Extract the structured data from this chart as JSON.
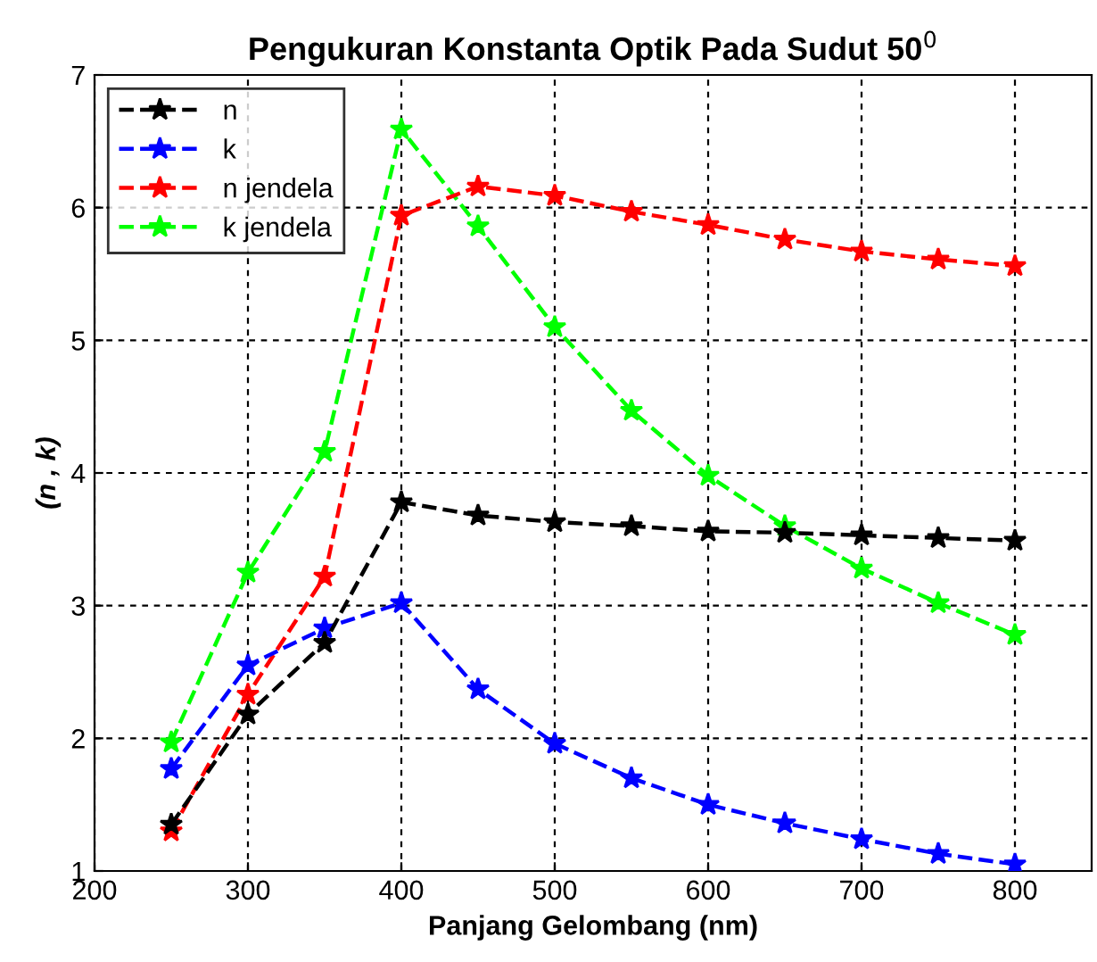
{
  "chart_data": {
    "type": "line",
    "title": "Pengukuran Konstanta Optik Pada Sudut 50$^{0}$",
    "xlabel": "Panjang Gelombang (nm)",
    "ylabel": "(n , k)",
    "x": [
      250,
      300,
      350,
      400,
      450,
      500,
      550,
      600,
      650,
      700,
      750,
      800
    ],
    "series": [
      {
        "name": "n",
        "color": "#000000",
        "values": [
          1.35,
          2.18,
          2.72,
          3.78,
          3.68,
          3.63,
          3.6,
          3.56,
          3.55,
          3.53,
          3.51,
          3.49
        ]
      },
      {
        "name": "k",
        "color": "#0000ff",
        "values": [
          1.77,
          2.55,
          2.83,
          3.02,
          2.37,
          1.96,
          1.7,
          1.5,
          1.36,
          1.24,
          1.13,
          1.05
        ]
      },
      {
        "name": "n jendela",
        "color": "#ff0000",
        "values": [
          1.3,
          2.33,
          3.22,
          5.94,
          6.16,
          6.09,
          5.97,
          5.87,
          5.76,
          5.67,
          5.61,
          5.56
        ]
      },
      {
        "name": "k jendela",
        "color": "#00ff00",
        "values": [
          1.97,
          3.25,
          4.16,
          6.59,
          5.86,
          5.1,
          4.47,
          3.98,
          3.6,
          3.28,
          3.02,
          2.78
        ]
      }
    ],
    "xlim": [
      200,
      850
    ],
    "xticks": [
      200,
      300,
      400,
      500,
      600,
      700,
      800
    ],
    "ylim": [
      1,
      7
    ],
    "yticks": [
      1,
      2,
      3,
      4,
      5,
      6,
      7
    ],
    "grid": true,
    "legend": "top left",
    "marker": "star",
    "line_style": "dashed"
  }
}
